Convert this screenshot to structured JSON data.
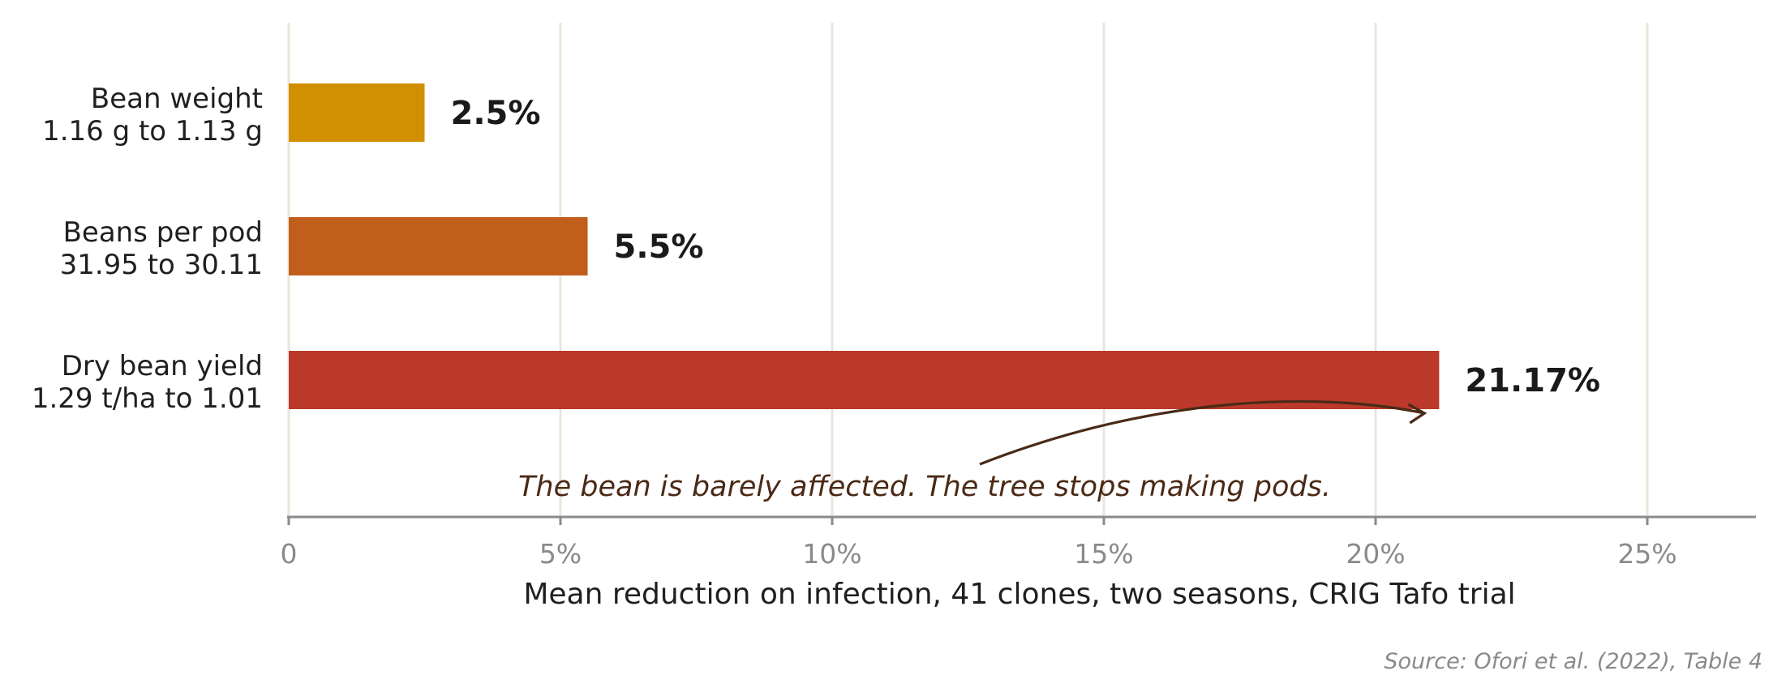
{
  "chart_data": {
    "type": "bar",
    "orientation": "horizontal",
    "categories": [
      {
        "line1": "Bean weight",
        "line2": "1.16 g to 1.13 g"
      },
      {
        "line1": "Beans per pod",
        "line2": "31.95 to 30.11"
      },
      {
        "line1": "Dry bean yield",
        "line2": "1.29 t/ha to 1.01"
      }
    ],
    "values": [
      2.5,
      5.5,
      21.17
    ],
    "value_labels": [
      "2.5%",
      "5.5%",
      "21.17%"
    ],
    "colors": [
      "#d19000",
      "#c25e1c",
      "#bb392b"
    ],
    "xlabel": "Mean reduction on infection, 41 clones, two seasons, CRIG Tafo trial",
    "xlim": [
      0,
      27
    ],
    "xticks": [
      0,
      5,
      10,
      15,
      20,
      25
    ],
    "xtick_labels": [
      "0",
      "5%",
      "10%",
      "15%",
      "20%",
      "25%"
    ],
    "grid": "vertical",
    "grid_color": "#ede5da",
    "annotation": {
      "text": "The bean is barely affected. The tree stops making pods.",
      "arrow_target_x": 20.9,
      "color": "#4a2a16"
    },
    "source": "Source: Ofori et al. (2022), Table 4"
  }
}
